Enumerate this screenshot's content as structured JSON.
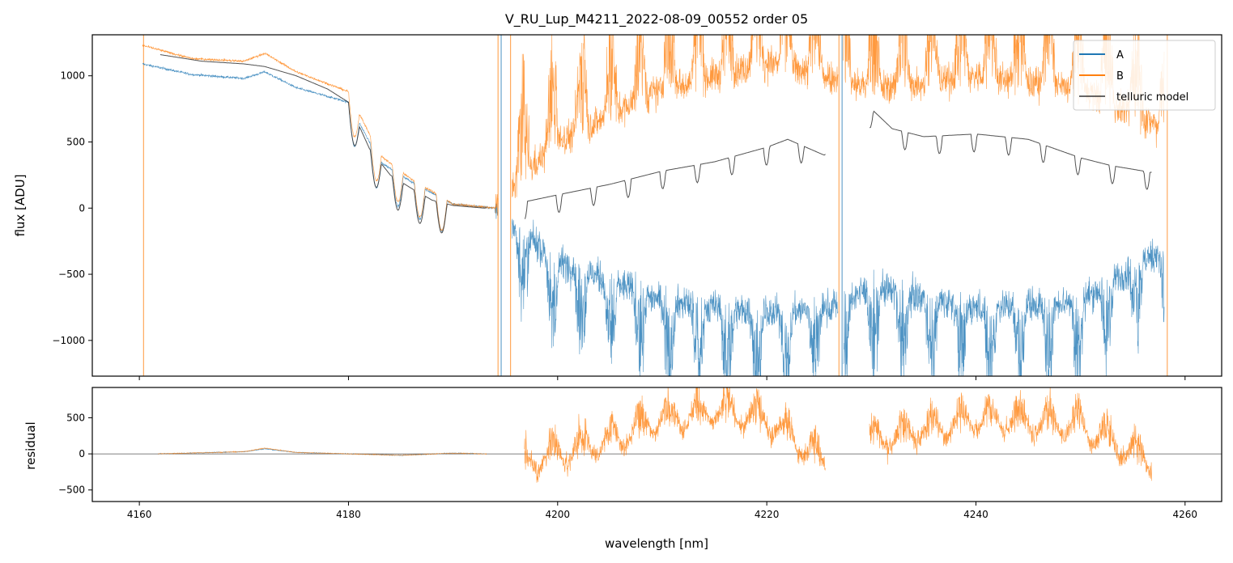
{
  "chart_data": [
    {
      "panel": "top",
      "type": "line",
      "title": "V_RU_Lup_M4211_2022-08-09_00552  order 05",
      "xlabel": "",
      "ylabel": "flux [ADU]",
      "xlim": [
        4155.5,
        4263.5
      ],
      "ylim": [
        -1270,
        1310
      ],
      "yticks": [
        1000,
        500,
        0,
        -500,
        -1000
      ],
      "ytick_labels": [
        "1000",
        "500",
        "0",
        "−500",
        "−1000"
      ],
      "xticks": [
        4160,
        4180,
        4200,
        4220,
        4240,
        4260
      ],
      "legend": {
        "placement": "top-right",
        "entries": [
          "A",
          "B",
          "telluric model"
        ]
      },
      "series": [
        {
          "name": "A",
          "color": "#1f77b4",
          "x": [
            4160.3,
            4165,
            4170,
            4172,
            4175,
            4180,
            4183,
            4186,
            4190,
            4194,
            4196,
            4200,
            4210,
            4220,
            4226,
            4230,
            4240,
            4250,
            4258
          ],
          "y": [
            1090,
            1010,
            980,
            1030,
            910,
            800,
            350,
            200,
            30,
            0,
            -150,
            -400,
            -700,
            -800,
            -750,
            -600,
            -750,
            -700,
            -300
          ]
        },
        {
          "name": "B",
          "color": "#ff7f0e",
          "x": [
            4160.3,
            4165,
            4170,
            4172,
            4175,
            4180,
            4183,
            4186,
            4190,
            4194,
            4196,
            4200,
            4210,
            4220,
            4226,
            4230,
            4240,
            4250,
            4258
          ],
          "y": [
            1230,
            1130,
            1110,
            1170,
            1030,
            880,
            400,
            220,
            30,
            0,
            200,
            500,
            900,
            1100,
            1000,
            900,
            1000,
            900,
            600
          ]
        },
        {
          "name": "telluric model",
          "color": "#333333",
          "x": [
            4162,
            4166,
            4170,
            4172,
            4175,
            4178,
            4180,
            4182,
            4184,
            4186,
            4188,
            4190,
            4193,
            4197,
            4200,
            4205,
            4210,
            4215,
            4220,
            4222,
            4225.5,
            4230,
            4232,
            4235,
            4240,
            4245,
            4250,
            4253,
            4256.8
          ],
          "y": [
            1160,
            1110,
            1090,
            1070,
            1000,
            900,
            800,
            450,
            250,
            150,
            60,
            20,
            0,
            50,
            100,
            180,
            280,
            350,
            460,
            520,
            400,
            750,
            600,
            540,
            560,
            520,
            380,
            320,
            270
          ]
        }
      ]
    },
    {
      "panel": "bottom",
      "type": "line",
      "title": "",
      "xlabel": "wavelength [nm]",
      "ylabel": "residual",
      "xlim": [
        4155.5,
        4263.5
      ],
      "ylim": [
        -660,
        920
      ],
      "yticks": [
        500,
        0,
        -500
      ],
      "ytick_labels": [
        "500",
        "0",
        "−500"
      ],
      "xticks": [
        4160,
        4180,
        4200,
        4220,
        4240,
        4260
      ],
      "xtick_labels": [
        "4160",
        "4180",
        "4200",
        "4220",
        "4240",
        "4260"
      ],
      "zero_line": true,
      "series": [
        {
          "name": "A",
          "color": "#1f77b4",
          "x": [
            4161.8,
            4170,
            4172,
            4175,
            4180,
            4185,
            4190,
            4193
          ],
          "y": [
            0,
            30,
            70,
            20,
            0,
            -20,
            10,
            0
          ]
        },
        {
          "name": "B",
          "color": "#ff7f0e",
          "x": [
            4161.8,
            4170,
            4172,
            4175,
            4180,
            4185,
            4190,
            4193,
            4197,
            4205,
            4210,
            4215,
            4220,
            4225.5,
            4230,
            4240,
            4250,
            4256.8
          ],
          "y": [
            0,
            30,
            80,
            20,
            0,
            -20,
            10,
            0,
            0,
            300,
            600,
            700,
            600,
            0,
            300,
            600,
            500,
            0
          ]
        }
      ]
    }
  ]
}
